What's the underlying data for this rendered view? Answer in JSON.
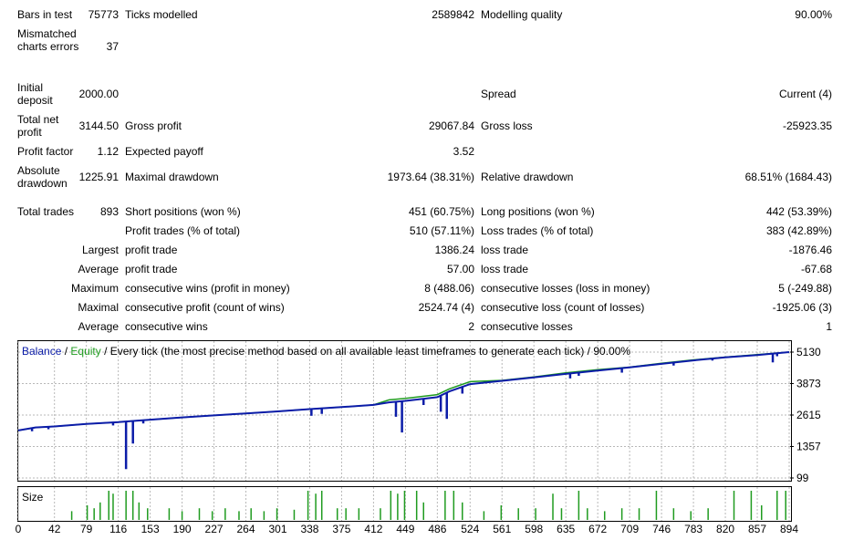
{
  "report": {
    "bars_in_test": {
      "label": "Bars in test",
      "value": "75773"
    },
    "ticks_modelled": {
      "label": "Ticks modelled",
      "value": "2589842"
    },
    "modelling_quality": {
      "label": "Modelling quality",
      "value": "90.00%"
    },
    "mismatched": {
      "label": "Mismatched charts errors",
      "value": "37"
    },
    "initial_deposit": {
      "label": "Initial deposit",
      "value": "2000.00"
    },
    "spread": {
      "label": "Spread",
      "value": "Current (4)"
    },
    "total_net_profit": {
      "label": "Total net profit",
      "value": "3144.50"
    },
    "gross_profit": {
      "label": "Gross profit",
      "value": "29067.84"
    },
    "gross_loss": {
      "label": "Gross loss",
      "value": "-25923.35"
    },
    "profit_factor": {
      "label": "Profit factor",
      "value": "1.12"
    },
    "expected_payoff": {
      "label": "Expected payoff",
      "value": "3.52"
    },
    "absolute_drawdown": {
      "label": "Absolute drawdown",
      "value": "1225.91"
    },
    "maximal_drawdown": {
      "label": "Maximal drawdown",
      "value": "1973.64 (38.31%)"
    },
    "relative_drawdown": {
      "label": "Relative drawdown",
      "value": "68.51% (1684.43)"
    },
    "total_trades": {
      "label": "Total trades",
      "value": "893"
    },
    "short_positions": {
      "label": "Short positions (won %)",
      "value": "451 (60.75%)"
    },
    "long_positions": {
      "label": "Long positions (won %)",
      "value": "442 (53.39%)"
    },
    "profit_trades": {
      "label": "Profit trades (% of total)",
      "value": "510 (57.11%)"
    },
    "loss_trades": {
      "label": "Loss trades (% of total)",
      "value": "383 (42.89%)"
    },
    "largest": {
      "label": "Largest",
      "profit_label": "profit trade",
      "profit_value": "1386.24",
      "loss_label": "loss trade",
      "loss_value": "-1876.46"
    },
    "average": {
      "label": "Average",
      "profit_label": "profit trade",
      "profit_value": "57.00",
      "loss_label": "loss trade",
      "loss_value": "-67.68"
    },
    "maximum": {
      "label": "Maximum",
      "wins_label": "consecutive wins (profit in money)",
      "wins_value": "8 (488.06)",
      "losses_label": "consecutive losses (loss in money)",
      "losses_value": "5 (-249.88)"
    },
    "maximal": {
      "label": "Maximal",
      "profit_label": "consecutive profit (count of wins)",
      "profit_value": "2524.74 (4)",
      "loss_label": "consecutive loss (count of losses)",
      "loss_value": "-1925.06 (3)"
    },
    "average_consec": {
      "label": "Average",
      "wins_label": "consecutive wins",
      "wins_value": "2",
      "losses_label": "consecutive losses",
      "losses_value": "1"
    }
  },
  "chart_data": {
    "type": "line",
    "legend": {
      "balance": "Balance",
      "sep1": " / ",
      "equity": "Equity",
      "sep2": " / ",
      "description": "Every tick (the most precise method based on all available least timeframes to generate each tick) / 90.00%"
    },
    "x_ticks": [
      "0",
      "42",
      "79",
      "116",
      "153",
      "190",
      "227",
      "264",
      "301",
      "338",
      "375",
      "412",
      "449",
      "486",
      "524",
      "561",
      "598",
      "635",
      "672",
      "709",
      "746",
      "783",
      "820",
      "857",
      "894"
    ],
    "y_ticks": [
      "5130",
      "3873",
      "2615",
      "1357",
      "99"
    ],
    "ylim": [
      99,
      5130
    ],
    "xlim": [
      0,
      894
    ],
    "colors": {
      "balance": "#0b1ca8",
      "equity": "#1f9b1f",
      "size": "#1f9b1f"
    },
    "series": [
      {
        "name": "Balance",
        "points": [
          [
            0,
            2000
          ],
          [
            20,
            2120
          ],
          [
            42,
            2160
          ],
          [
            79,
            2260
          ],
          [
            116,
            2330
          ],
          [
            135,
            2380
          ],
          [
            153,
            2430
          ],
          [
            190,
            2520
          ],
          [
            227,
            2600
          ],
          [
            264,
            2680
          ],
          [
            301,
            2760
          ],
          [
            338,
            2850
          ],
          [
            375,
            2930
          ],
          [
            412,
            3020
          ],
          [
            430,
            3120
          ],
          [
            449,
            3180
          ],
          [
            486,
            3330
          ],
          [
            500,
            3560
          ],
          [
            524,
            3850
          ],
          [
            561,
            3980
          ],
          [
            598,
            4120
          ],
          [
            635,
            4260
          ],
          [
            672,
            4390
          ],
          [
            709,
            4520
          ],
          [
            746,
            4660
          ],
          [
            783,
            4800
          ],
          [
            820,
            4920
          ],
          [
            857,
            5010
          ],
          [
            894,
            5130
          ]
        ]
      },
      {
        "name": "Equity",
        "points": [
          [
            0,
            2000
          ],
          [
            20,
            2120
          ],
          [
            42,
            2160
          ],
          [
            79,
            2260
          ],
          [
            116,
            2330
          ],
          [
            135,
            2380
          ],
          [
            153,
            2430
          ],
          [
            190,
            2520
          ],
          [
            227,
            2600
          ],
          [
            264,
            2680
          ],
          [
            301,
            2760
          ],
          [
            338,
            2850
          ],
          [
            375,
            2930
          ],
          [
            412,
            3020
          ],
          [
            430,
            3220
          ],
          [
            449,
            3280
          ],
          [
            486,
            3430
          ],
          [
            500,
            3660
          ],
          [
            524,
            3950
          ],
          [
            561,
            4000
          ],
          [
            598,
            4140
          ],
          [
            635,
            4300
          ],
          [
            672,
            4430
          ],
          [
            709,
            4530
          ],
          [
            746,
            4680
          ],
          [
            783,
            4820
          ],
          [
            820,
            4930
          ],
          [
            857,
            5030
          ],
          [
            894,
            5130
          ]
        ]
      }
    ],
    "drawdowns": [
      [
        16,
        -130
      ],
      [
        35,
        -100
      ],
      [
        110,
        -120
      ],
      [
        125,
        -1900
      ],
      [
        133,
        -900
      ],
      [
        145,
        -130
      ],
      [
        340,
        -270
      ],
      [
        352,
        -220
      ],
      [
        438,
        -600
      ],
      [
        445,
        -1250
      ],
      [
        470,
        -250
      ],
      [
        490,
        -650
      ],
      [
        497,
        -1050
      ],
      [
        515,
        -270
      ],
      [
        640,
        -200
      ],
      [
        650,
        -130
      ],
      [
        700,
        -180
      ],
      [
        760,
        -120
      ],
      [
        805,
        -80
      ],
      [
        875,
        -350
      ],
      [
        880,
        -120
      ]
    ],
    "size_label": "Size",
    "sizes": [
      [
        62,
        0.3
      ],
      [
        80,
        0.5
      ],
      [
        88,
        0.4
      ],
      [
        95,
        0.6
      ],
      [
        105,
        1.0
      ],
      [
        110,
        0.9
      ],
      [
        125,
        1.0
      ],
      [
        133,
        1.0
      ],
      [
        140,
        0.6
      ],
      [
        150,
        0.4
      ],
      [
        175,
        0.4
      ],
      [
        190,
        0.3
      ],
      [
        210,
        0.4
      ],
      [
        225,
        0.3
      ],
      [
        240,
        0.4
      ],
      [
        256,
        0.3
      ],
      [
        270,
        0.4
      ],
      [
        285,
        0.3
      ],
      [
        300,
        0.4
      ],
      [
        320,
        0.35
      ],
      [
        336,
        1.0
      ],
      [
        345,
        0.9
      ],
      [
        352,
        1.0
      ],
      [
        370,
        0.4
      ],
      [
        380,
        0.4
      ],
      [
        395,
        0.4
      ],
      [
        420,
        0.4
      ],
      [
        432,
        1.0
      ],
      [
        440,
        0.9
      ],
      [
        448,
        1.0
      ],
      [
        462,
        1.0
      ],
      [
        470,
        0.6
      ],
      [
        495,
        1.0
      ],
      [
        505,
        1.0
      ],
      [
        515,
        0.6
      ],
      [
        540,
        0.3
      ],
      [
        560,
        0.5
      ],
      [
        580,
        0.4
      ],
      [
        600,
        0.4
      ],
      [
        620,
        0.9
      ],
      [
        630,
        0.4
      ],
      [
        650,
        1.0
      ],
      [
        660,
        0.4
      ],
      [
        680,
        0.3
      ],
      [
        700,
        0.4
      ],
      [
        720,
        0.4
      ],
      [
        740,
        1.0
      ],
      [
        760,
        0.4
      ],
      [
        780,
        0.3
      ],
      [
        800,
        0.4
      ],
      [
        830,
        1.0
      ],
      [
        850,
        1.0
      ],
      [
        862,
        0.5
      ],
      [
        880,
        1.0
      ],
      [
        890,
        1.0
      ]
    ]
  }
}
